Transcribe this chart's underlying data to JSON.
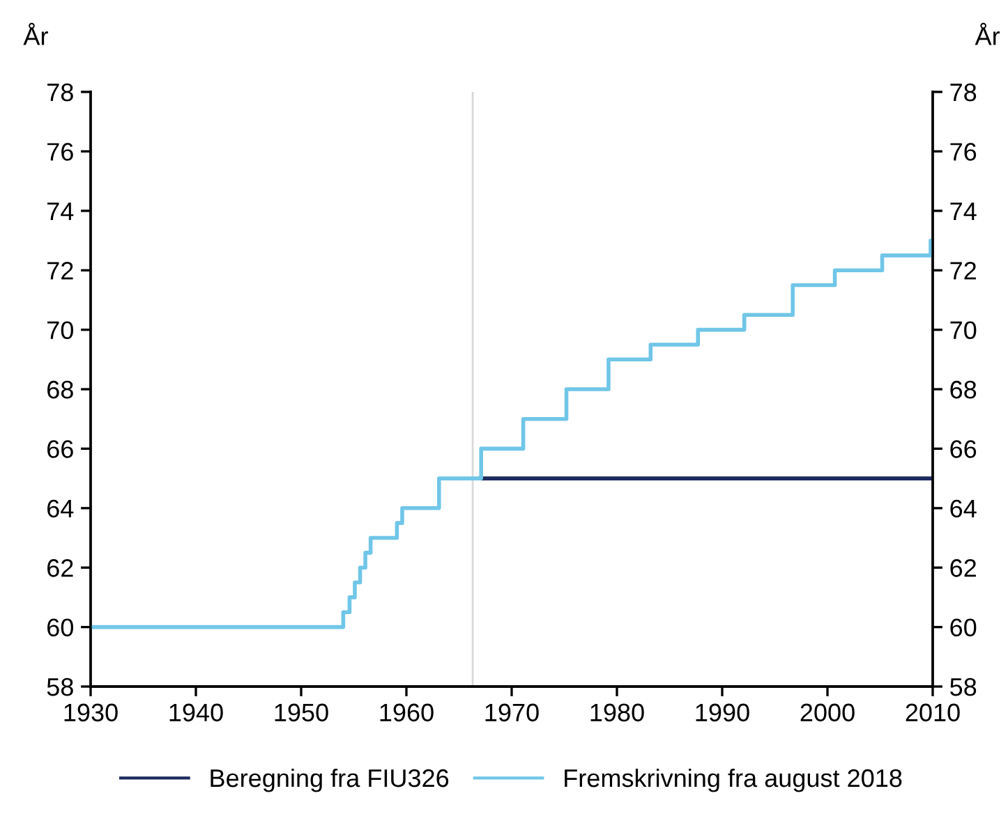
{
  "chart_data": {
    "type": "step",
    "ylabel": "År",
    "y2label": "År",
    "xlim": [
      1930,
      2010
    ],
    "xticks": [
      1930,
      1940,
      1950,
      1960,
      1970,
      1980,
      1990,
      2000,
      2010
    ],
    "ylim": [
      58,
      78
    ],
    "yticks": [
      58,
      60,
      62,
      64,
      66,
      68,
      70,
      72,
      74,
      76,
      78
    ],
    "y2lim": [
      58,
      78
    ],
    "y2ticks": [
      58,
      60,
      62,
      64,
      66,
      68,
      70,
      72,
      74,
      76,
      78
    ],
    "grid": false,
    "legend": "bottom",
    "line_style": "solid",
    "marker": "none",
    "ref_lines": [
      {
        "axis": "x",
        "value": 1966.3,
        "color": "#d9d9d9"
      }
    ],
    "series": [
      {
        "name": "Beregning fra FIU326",
        "color": "#1c2a5e",
        "x": [
          1967,
          2010
        ],
        "values": [
          65,
          65
        ]
      },
      {
        "name": "Fremskrivning fra august 2018",
        "color": "#70c6e8",
        "x": [
          1930,
          1954.0,
          1954.6,
          1955.1,
          1955.6,
          1956.1,
          1956.6,
          1959.1,
          1959.6,
          1963.1,
          1967.1,
          1971.1,
          1975.2,
          1979.2,
          1983.2,
          1987.7,
          1992.1,
          1996.7,
          2000.7,
          2005.2,
          2009.8,
          2010
        ],
        "values": [
          60,
          60.5,
          61,
          61.5,
          62,
          62.5,
          63,
          63.5,
          64,
          65,
          66,
          67,
          68,
          69,
          69.5,
          70,
          70.5,
          71.5,
          72,
          72.5,
          73,
          73
        ]
      }
    ]
  }
}
